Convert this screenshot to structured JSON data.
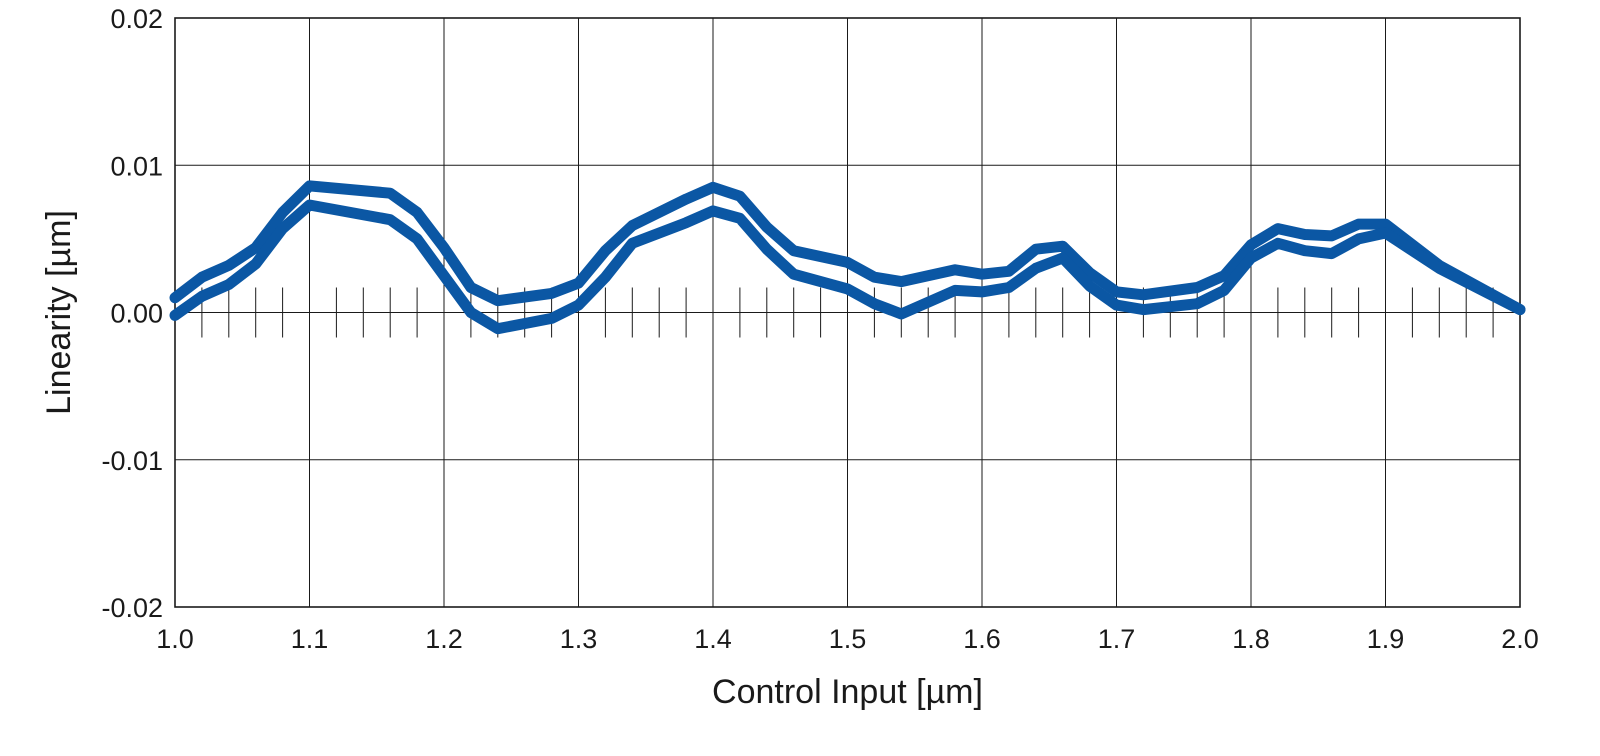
{
  "chart_data": {
    "type": "line",
    "title": "",
    "xlabel": "Control Input [µm]",
    "ylabel": "Linearity [µm]",
    "xlim": [
      1.0,
      2.0
    ],
    "ylim": [
      -0.02,
      0.02
    ],
    "x_ticks": [
      "1.0",
      "1.1",
      "1.2",
      "1.3",
      "1.4",
      "1.5",
      "1.6",
      "1.7",
      "1.8",
      "1.9",
      "2.0"
    ],
    "y_ticks": [
      "0.02",
      "0.01",
      "0.00",
      "-0.01",
      "-0.02"
    ],
    "x_tick_values": [
      1.0,
      1.1,
      1.2,
      1.3,
      1.4,
      1.5,
      1.6,
      1.7,
      1.8,
      1.9,
      2.0
    ],
    "y_tick_values": [
      0.02,
      0.01,
      0.0,
      -0.01,
      -0.02
    ],
    "minor_tick_step": 0.02,
    "grid": true,
    "legend": "none",
    "line_color": "#0b57a4",
    "series": [
      {
        "x": [
          1.0,
          1.02,
          1.04,
          1.06,
          1.08,
          1.1,
          1.16,
          1.18,
          1.2,
          1.22,
          1.24,
          1.28,
          1.3,
          1.32,
          1.34,
          1.38,
          1.4,
          1.42,
          1.44,
          1.46,
          1.5,
          1.52,
          1.54,
          1.58,
          1.6,
          1.62,
          1.64,
          1.66,
          1.68,
          1.7,
          1.72,
          1.76,
          1.78,
          1.8,
          1.82,
          1.84,
          1.86,
          1.88,
          1.9,
          1.94,
          2.0
        ],
        "y": [
          0.001,
          0.0024,
          0.0032,
          0.0044,
          0.0068,
          0.0086,
          0.0081,
          0.0068,
          0.0044,
          0.0017,
          0.0008,
          0.0013,
          0.002,
          0.0042,
          0.0059,
          0.0077,
          0.0085,
          0.0079,
          0.0058,
          0.0042,
          0.0034,
          0.0024,
          0.0021,
          0.0029,
          0.0026,
          0.0028,
          0.0043,
          0.0045,
          0.0027,
          0.0014,
          0.0012,
          0.0017,
          0.0025,
          0.0046,
          0.0057,
          0.0053,
          0.0052,
          0.006,
          0.006,
          0.0032,
          0.0002
        ]
      },
      {
        "x": [
          1.0,
          1.02,
          1.04,
          1.06,
          1.08,
          1.1,
          1.16,
          1.18,
          1.2,
          1.22,
          1.24,
          1.28,
          1.3,
          1.32,
          1.34,
          1.38,
          1.4,
          1.42,
          1.44,
          1.46,
          1.5,
          1.52,
          1.54,
          1.58,
          1.6,
          1.62,
          1.64,
          1.66,
          1.68,
          1.7,
          1.72,
          1.76,
          1.78,
          1.8,
          1.82,
          1.84,
          1.86,
          1.88,
          1.9,
          1.94,
          2.0
        ],
        "y": [
          -0.0002,
          0.0011,
          0.0019,
          0.0033,
          0.0057,
          0.0073,
          0.0063,
          0.005,
          0.0025,
          0.0,
          -0.0011,
          -0.0004,
          0.0005,
          0.0024,
          0.0047,
          0.0061,
          0.0069,
          0.0064,
          0.0043,
          0.0026,
          0.0016,
          0.0006,
          -0.0001,
          0.0015,
          0.0014,
          0.0017,
          0.003,
          0.0037,
          0.0018,
          0.0005,
          0.0002,
          0.0006,
          0.0015,
          0.0037,
          0.0047,
          0.0042,
          0.004,
          0.005,
          0.0054,
          0.003,
          0.0002
        ]
      }
    ]
  }
}
